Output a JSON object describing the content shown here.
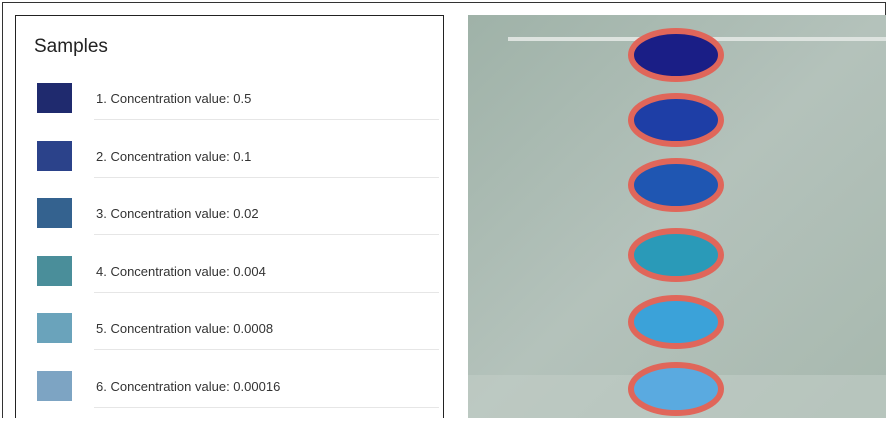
{
  "panel": {
    "title": "Samples",
    "items": [
      {
        "label": "1. Concentration value: 0.5",
        "color": "#1f2a6e"
      },
      {
        "label": "2. Concentration value: 0.1",
        "color": "#2b428a"
      },
      {
        "label": "3. Concentration value: 0.02",
        "color": "#34628f"
      },
      {
        "label": "4. Concentration value: 0.004",
        "color": "#4a8e9a"
      },
      {
        "label": "5. Concentration value: 0.0008",
        "color": "#6aa3bb"
      },
      {
        "label": "6. Concentration value: 0.00016",
        "color": "#7da4c3"
      }
    ]
  }
}
